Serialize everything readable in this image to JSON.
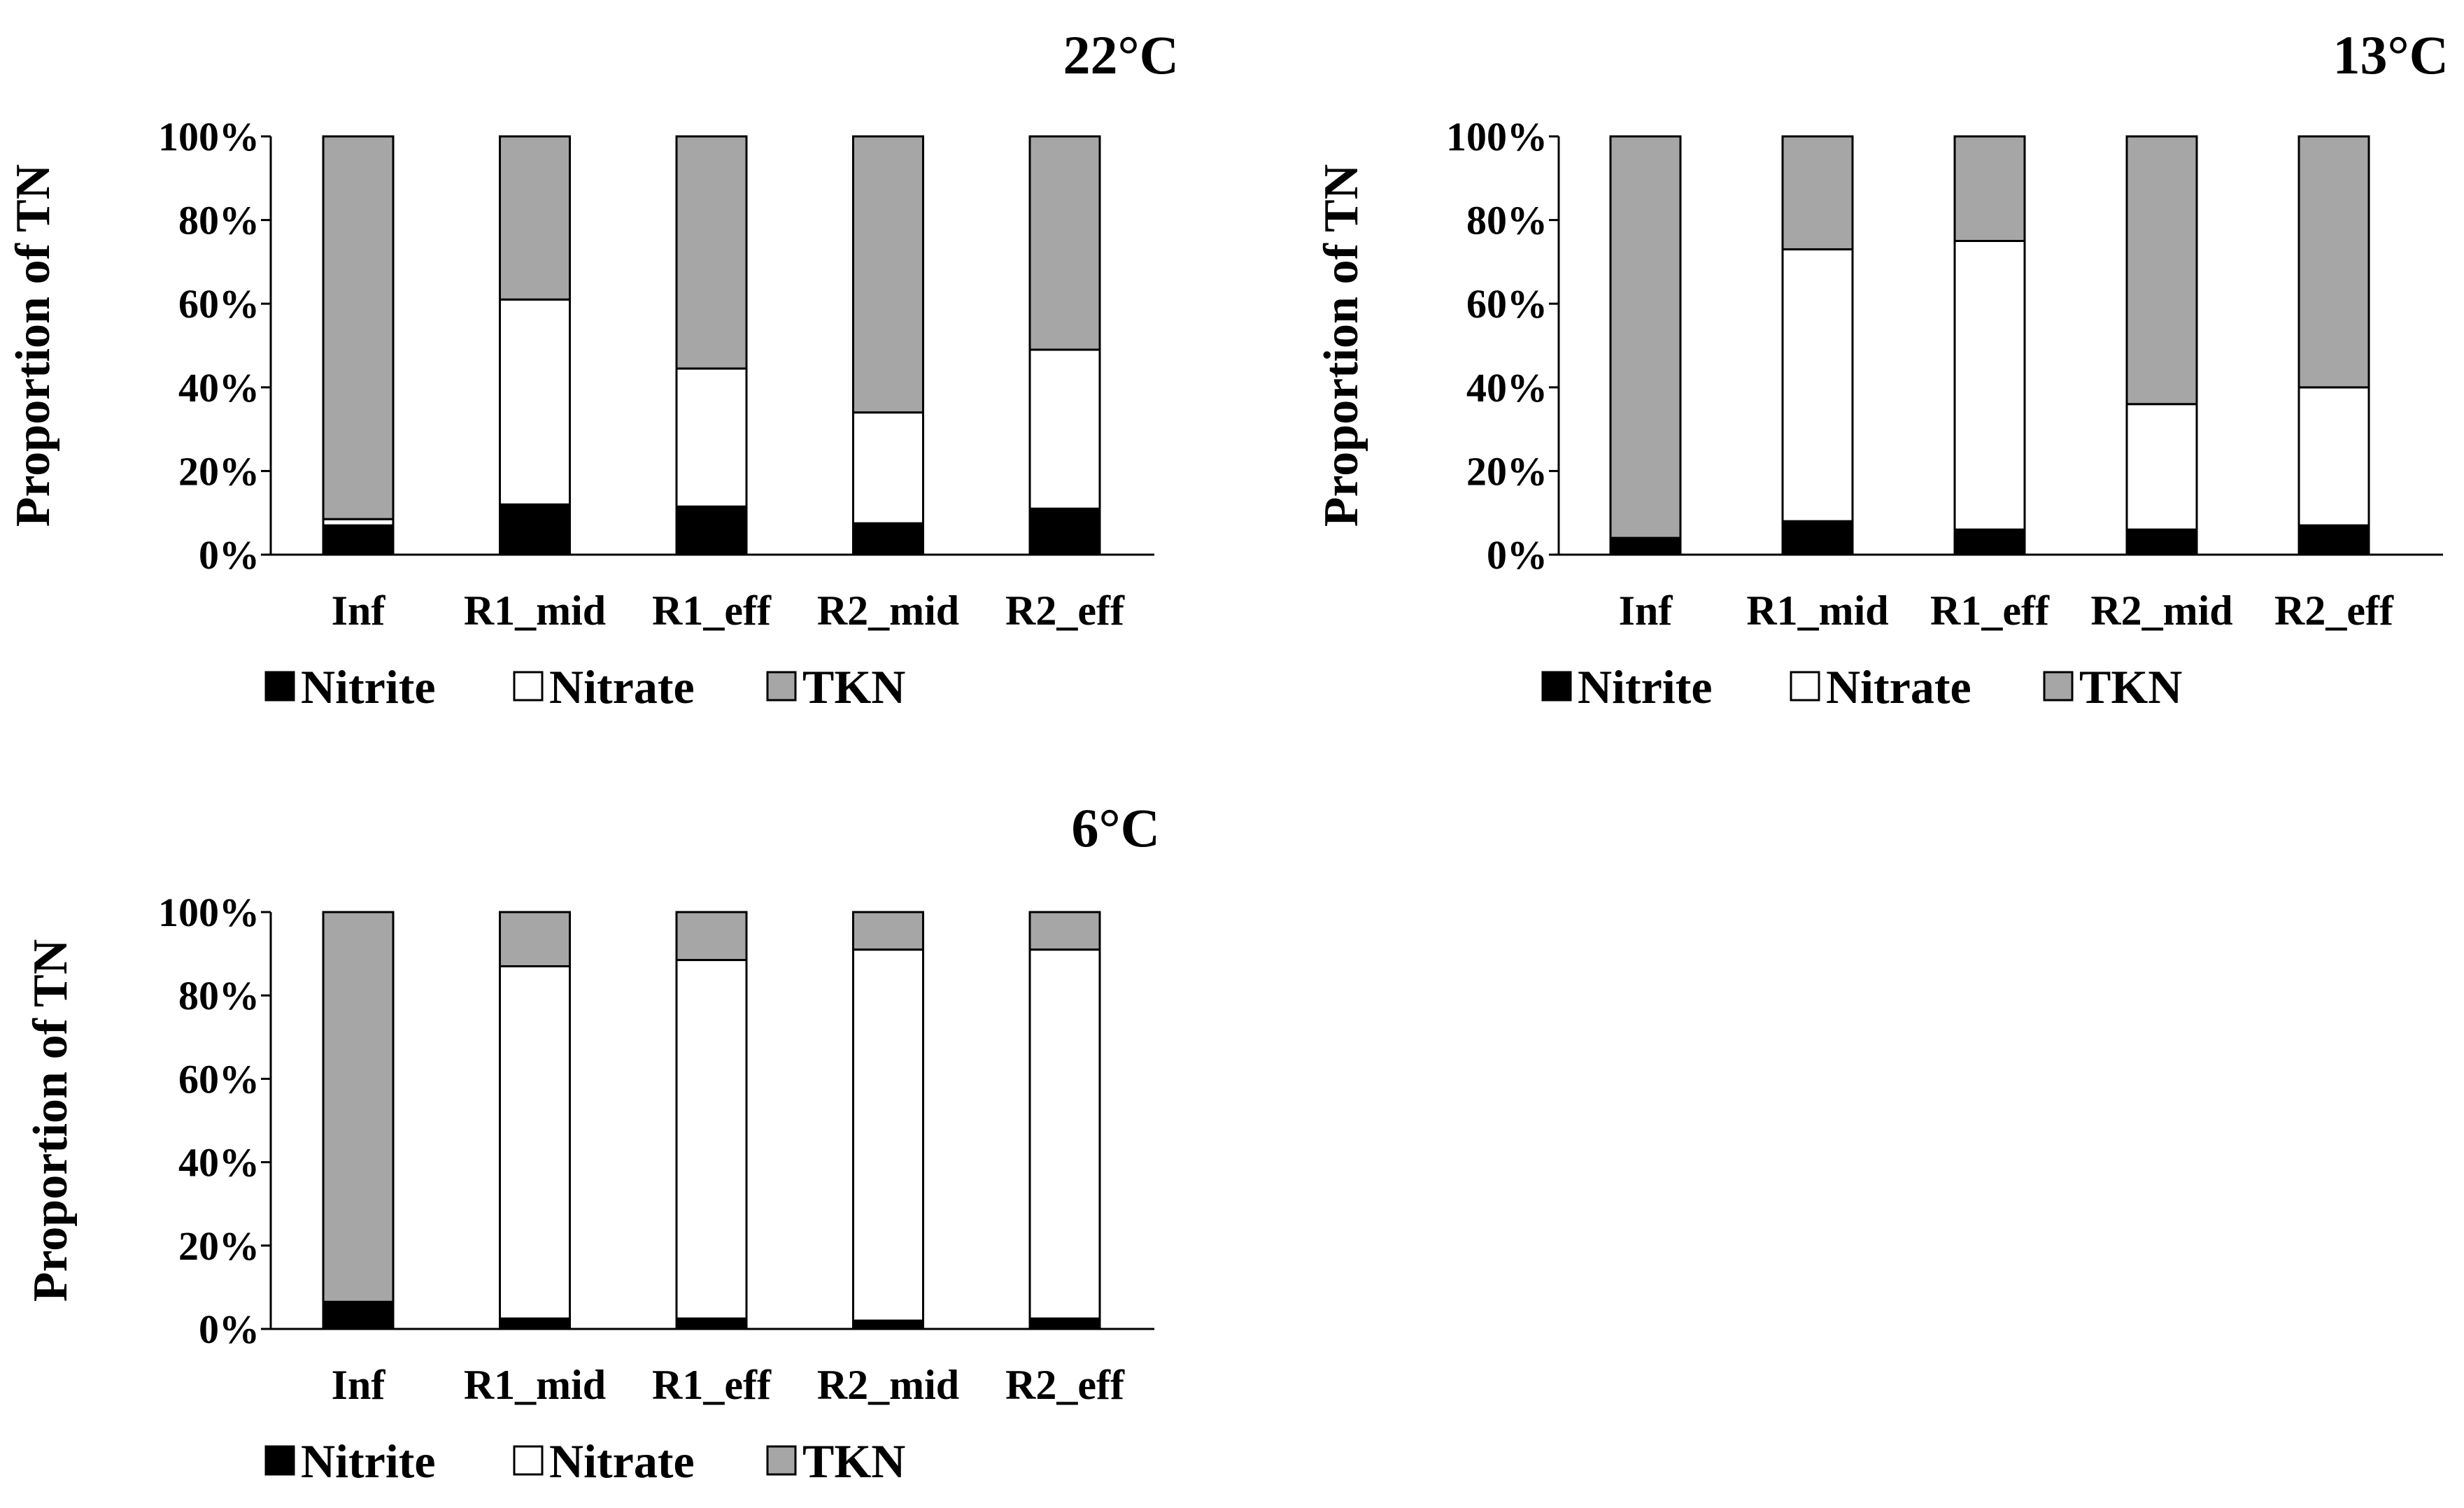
{
  "chart_data": [
    {
      "type": "bar",
      "stacked": true,
      "title": "22°C",
      "ylabel": "Proportion of TN",
      "xlabel": "",
      "ylim": [
        0,
        100
      ],
      "yticks": [
        "0%",
        "20%",
        "40%",
        "60%",
        "80%",
        "100%"
      ],
      "categories": [
        "Inf",
        "R1_mid",
        "R1_eff",
        "R2_mid",
        "R2_eff"
      ],
      "legend_position": "bottom-left",
      "series": [
        {
          "name": "Nitrite",
          "color": "#000000",
          "values": [
            7,
            12,
            11.5,
            7.5,
            11
          ]
        },
        {
          "name": "Nitrate",
          "color": "#ffffff",
          "values": [
            1.5,
            49,
            33,
            26.5,
            38
          ]
        },
        {
          "name": "TKN",
          "color": "#a6a6a6",
          "values": [
            91.5,
            39,
            55.5,
            66,
            51
          ]
        }
      ]
    },
    {
      "type": "bar",
      "stacked": true,
      "title": "13°C",
      "ylabel": "Proportion of TN",
      "xlabel": "",
      "ylim": [
        0,
        100
      ],
      "yticks": [
        "0%",
        "20%",
        "40%",
        "60%",
        "80%",
        "100%"
      ],
      "categories": [
        "Inf",
        "R1_mid",
        "R1_eff",
        "R2_mid",
        "R2_eff"
      ],
      "legend_position": "bottom-left",
      "series": [
        {
          "name": "Nitrite",
          "color": "#000000",
          "values": [
            4,
            8,
            6,
            6,
            7
          ]
        },
        {
          "name": "Nitrate",
          "color": "#ffffff",
          "values": [
            0,
            65,
            69,
            30,
            33
          ]
        },
        {
          "name": "TKN",
          "color": "#a6a6a6",
          "values": [
            96,
            27,
            25,
            64,
            60
          ]
        }
      ]
    },
    {
      "type": "bar",
      "stacked": true,
      "title": "6°C",
      "ylabel": "Proportion of TN",
      "xlabel": "",
      "ylim": [
        0,
        100
      ],
      "yticks": [
        "0%",
        "20%",
        "40%",
        "60%",
        "80%",
        "100%"
      ],
      "categories": [
        "Inf",
        "R1_mid",
        "R1_eff",
        "R2_mid",
        "R2_eff"
      ],
      "legend_position": "bottom-left",
      "series": [
        {
          "name": "Nitrite",
          "color": "#000000",
          "values": [
            6.5,
            2.5,
            2.5,
            2,
            2.5
          ]
        },
        {
          "name": "Nitrate",
          "color": "#ffffff",
          "values": [
            0,
            84.5,
            86,
            89,
            88.5
          ]
        },
        {
          "name": "TKN",
          "color": "#a6a6a6",
          "values": [
            93.5,
            13,
            11.5,
            9,
            9
          ]
        }
      ]
    }
  ]
}
